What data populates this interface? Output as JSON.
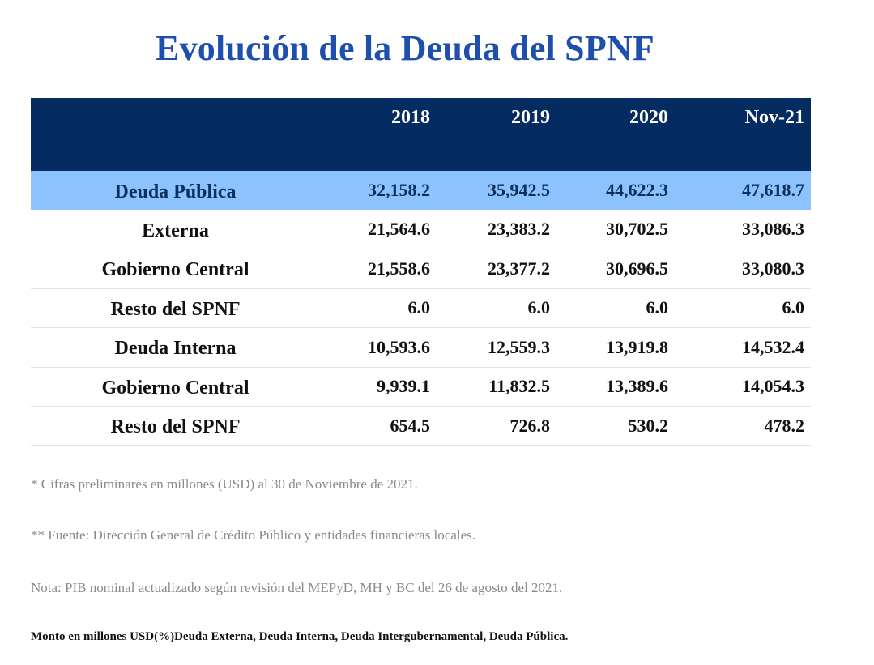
{
  "title": "Evolución de la Deuda del SPNF",
  "table": {
    "columns": [
      "2018",
      "2019",
      "2020",
      "Nov-21"
    ],
    "rows": [
      {
        "label": "Deuda Pública",
        "values": [
          "32,158.2",
          "35,942.5",
          "44,622.3",
          "47,618.7"
        ]
      },
      {
        "label": "Externa",
        "values": [
          "21,564.6",
          "23,383.2",
          "30,702.5",
          "33,086.3"
        ]
      },
      {
        "label": "Gobierno Central",
        "values": [
          "21,558.6",
          "23,377.2",
          "30,696.5",
          "33,080.3"
        ]
      },
      {
        "label": "Resto del SPNF",
        "values": [
          "6.0",
          "6.0",
          "6.0",
          "6.0"
        ]
      },
      {
        "label": "Deuda Interna",
        "values": [
          "10,593.6",
          "12,559.3",
          "13,919.8",
          "14,532.4"
        ]
      },
      {
        "label": "Gobierno Central",
        "values": [
          "9,939.1",
          "11,832.5",
          "13,389.6",
          "14,054.3"
        ]
      },
      {
        "label": "Resto del SPNF",
        "values": [
          "654.5",
          "726.8",
          "530.2",
          "478.2"
        ]
      }
    ]
  },
  "notes": {
    "preliminary": "* Cifras preliminares en millones (USD) al 30 de Noviembre de 2021.",
    "source": "** Fuente: Dirección General de Crédito Público y entidades financieras locales.",
    "pib": "Nota: PIB nominal actualizado según revisión del MEPyD, MH y BC del 26 de agosto del 2021.",
    "footer": "Monto en millones USD(%)Deuda Externa, Deuda Interna, Deuda Intergubernamental, Deuda Pública."
  },
  "colors": {
    "title": "#1f4fae",
    "header_bg": "#042c60",
    "highlight_bg": "#8cc3ff"
  }
}
